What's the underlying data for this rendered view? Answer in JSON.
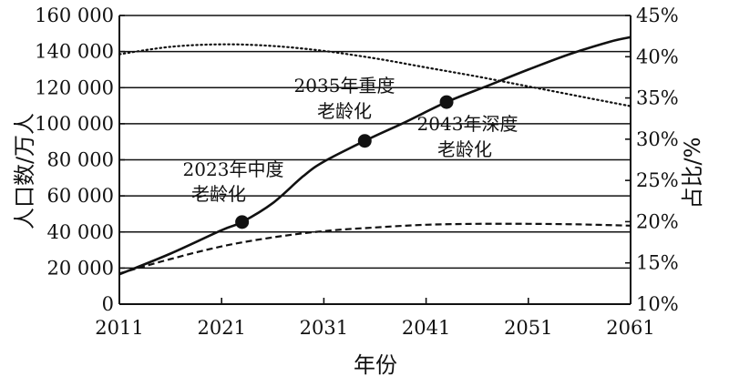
{
  "chart_data": {
    "type": "line",
    "xlabel": "年份",
    "ylabel_left": "人口数/万人",
    "ylabel_right": "占比/%",
    "xlim": [
      2011,
      2061
    ],
    "ylim_left": [
      0,
      160000
    ],
    "ylim_right": [
      10,
      45
    ],
    "x_ticks": [
      "2011",
      "2021",
      "2031",
      "2041",
      "2051",
      "2061"
    ],
    "y_left_ticks": [
      "0",
      "20 000",
      "40 000",
      "60 000",
      "80 000",
      "100 000",
      "120 000",
      "140 000",
      "160 000"
    ],
    "y_right_ticks": [
      "10%",
      "15%",
      "20%",
      "25%",
      "30%",
      "35%",
      "40%",
      "45%"
    ],
    "grid": "horizontal",
    "series": [
      {
        "style": "solid",
        "axis": "left",
        "x": [
          2011,
          2016,
          2021,
          2023,
          2026,
          2029,
          2031,
          2035,
          2039,
          2043,
          2047,
          2051,
          2055,
          2059,
          2061
        ],
        "values": [
          16500,
          28000,
          41000,
          45500,
          56000,
          71000,
          79000,
          90500,
          101000,
          112000,
          121000,
          130000,
          138500,
          145500,
          148000
        ]
      },
      {
        "style": "dashed",
        "axis": "left",
        "x": [
          2011,
          2016,
          2021,
          2026,
          2031,
          2036,
          2041,
          2046,
          2051,
          2056,
          2061
        ],
        "values": [
          17000,
          25000,
          32000,
          37000,
          40500,
          42500,
          44000,
          44500,
          44500,
          44200,
          43500
        ]
      },
      {
        "style": "dotted",
        "axis": "right",
        "x": [
          2011,
          2016,
          2021,
          2026,
          2031,
          2036,
          2041,
          2046,
          2051,
          2056,
          2061
        ],
        "values": [
          40.3,
          41.2,
          41.5,
          41.3,
          40.7,
          39.8,
          38.7,
          37.6,
          36.4,
          35.2,
          34.0
        ]
      }
    ],
    "markers": [
      {
        "x": 2023,
        "value": 45500
      },
      {
        "x": 2035,
        "value": 90500
      },
      {
        "x": 2043,
        "value": 112000
      }
    ],
    "annotations": [
      {
        "line1": "2023年中度",
        "line2": "老龄化"
      },
      {
        "line1": "2035年重度",
        "line2": "老龄化"
      },
      {
        "line1": "2043年深度",
        "line2": "老龄化"
      }
    ]
  }
}
